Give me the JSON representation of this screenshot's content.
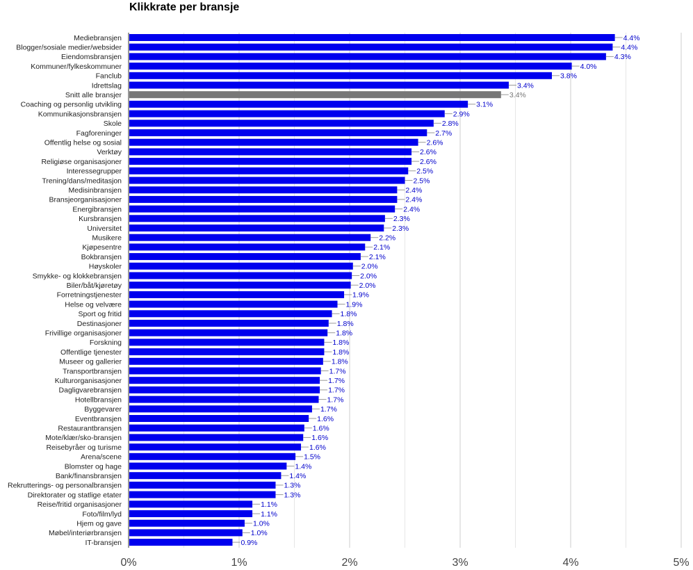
{
  "chart_data": {
    "type": "bar",
    "orientation": "horizontal",
    "title": "Klikkrate per bransje",
    "xlabel": "",
    "ylabel": "",
    "xlim": [
      0,
      5
    ],
    "x_ticks": [
      "0%",
      "1%",
      "2%",
      "3%",
      "4%",
      "5%"
    ],
    "grid": true,
    "legend": "none",
    "colors": {
      "bar": "#0000ee",
      "highlight": "#777777",
      "grid": "#cccccc",
      "label": "#0000cc"
    },
    "highlight_category": "Snitt alle bransjer",
    "bars": [
      {
        "category": "Mediebransjen",
        "value": 4.4,
        "label": "4.4%"
      },
      {
        "category": "Blogger/sosiale medier/websider",
        "value": 4.38,
        "label": "4.4%"
      },
      {
        "category": "Eiendomsbransjen",
        "value": 4.32,
        "label": "4.3%"
      },
      {
        "category": "Kommuner/fylkeskommuner",
        "value": 4.01,
        "label": "4.0%"
      },
      {
        "category": "Fanclub",
        "value": 3.83,
        "label": "3.8%"
      },
      {
        "category": "Idrettslag",
        "value": 3.44,
        "label": "3.4%"
      },
      {
        "category": "Snitt alle bransjer",
        "value": 3.37,
        "label": "3.4%"
      },
      {
        "category": "Coaching og personlig utvikling",
        "value": 3.07,
        "label": "3.1%"
      },
      {
        "category": "Kommunikasjonsbransjen",
        "value": 2.86,
        "label": "2.9%"
      },
      {
        "category": "Skole",
        "value": 2.76,
        "label": "2.8%"
      },
      {
        "category": "Fagforeninger",
        "value": 2.7,
        "label": "2.7%"
      },
      {
        "category": "Offentlig helse og sosial",
        "value": 2.62,
        "label": "2.6%"
      },
      {
        "category": "Verktøy",
        "value": 2.56,
        "label": "2.6%"
      },
      {
        "category": "Religiøse organisasjoner",
        "value": 2.56,
        "label": "2.6%"
      },
      {
        "category": "Interessegrupper",
        "value": 2.53,
        "label": "2.5%"
      },
      {
        "category": "Trening/dans/meditasjon",
        "value": 2.5,
        "label": "2.5%"
      },
      {
        "category": "Medisinbransjen",
        "value": 2.43,
        "label": "2.4%"
      },
      {
        "category": "Bransjeorganisasjoner",
        "value": 2.43,
        "label": "2.4%"
      },
      {
        "category": "Energibransjen",
        "value": 2.41,
        "label": "2.4%"
      },
      {
        "category": "Kursbransjen",
        "value": 2.32,
        "label": "2.3%"
      },
      {
        "category": "Universitet",
        "value": 2.31,
        "label": "2.3%"
      },
      {
        "category": "Musikere",
        "value": 2.19,
        "label": "2.2%"
      },
      {
        "category": "Kjøpesentre",
        "value": 2.14,
        "label": "2.1%"
      },
      {
        "category": "Bokbransjen",
        "value": 2.1,
        "label": "2.1%"
      },
      {
        "category": "Høyskoler",
        "value": 2.03,
        "label": "2.0%"
      },
      {
        "category": "Smykke- og klokkebransjen",
        "value": 2.02,
        "label": "2.0%"
      },
      {
        "category": "Biler/båt/kjøretøy",
        "value": 2.01,
        "label": "2.0%"
      },
      {
        "category": "Forretningstjenester",
        "value": 1.95,
        "label": "1.9%"
      },
      {
        "category": "Helse og velvære",
        "value": 1.89,
        "label": "1.9%"
      },
      {
        "category": "Sport og fritid",
        "value": 1.84,
        "label": "1.8%"
      },
      {
        "category": "Destinasjoner",
        "value": 1.81,
        "label": "1.8%"
      },
      {
        "category": "Frivillige organisasjoner",
        "value": 1.8,
        "label": "1.8%"
      },
      {
        "category": "Forskning",
        "value": 1.77,
        "label": "1.8%"
      },
      {
        "category": "Offentlige tjenester",
        "value": 1.77,
        "label": "1.8%"
      },
      {
        "category": "Museer og gallerier",
        "value": 1.76,
        "label": "1.8%"
      },
      {
        "category": "Transportbransjen",
        "value": 1.74,
        "label": "1.7%"
      },
      {
        "category": "Kulturorganisasjoner",
        "value": 1.73,
        "label": "1.7%"
      },
      {
        "category": "Dagligvarebransjen",
        "value": 1.73,
        "label": "1.7%"
      },
      {
        "category": "Hotellbransjen",
        "value": 1.72,
        "label": "1.7%"
      },
      {
        "category": "Byggevarer",
        "value": 1.66,
        "label": "1.7%"
      },
      {
        "category": "Eventbransjen",
        "value": 1.63,
        "label": "1.6%"
      },
      {
        "category": "Restaurantbransjen",
        "value": 1.59,
        "label": "1.6%"
      },
      {
        "category": "Mote/klær/sko-bransjen",
        "value": 1.58,
        "label": "1.6%"
      },
      {
        "category": "Reisebyråer og turisme",
        "value": 1.56,
        "label": "1.6%"
      },
      {
        "category": "Arena/scene",
        "value": 1.51,
        "label": "1.5%"
      },
      {
        "category": "Blomster og hage",
        "value": 1.43,
        "label": "1.4%"
      },
      {
        "category": "Bank/finansbransjen",
        "value": 1.38,
        "label": "1.4%"
      },
      {
        "category": "Rekrutterings- og personalbransjen",
        "value": 1.33,
        "label": "1.3%"
      },
      {
        "category": "Direktorater og statlige etater",
        "value": 1.33,
        "label": "1.3%"
      },
      {
        "category": "Reise/fritid organisasjoner",
        "value": 1.12,
        "label": "1.1%"
      },
      {
        "category": "Foto/film/lyd",
        "value": 1.12,
        "label": "1.1%"
      },
      {
        "category": "Hjem og gave",
        "value": 1.05,
        "label": "1.0%"
      },
      {
        "category": "Møbel/interiørbransjen",
        "value": 1.03,
        "label": "1.0%"
      },
      {
        "category": "IT-bransjen",
        "value": 0.94,
        "label": "0.9%"
      }
    ]
  }
}
